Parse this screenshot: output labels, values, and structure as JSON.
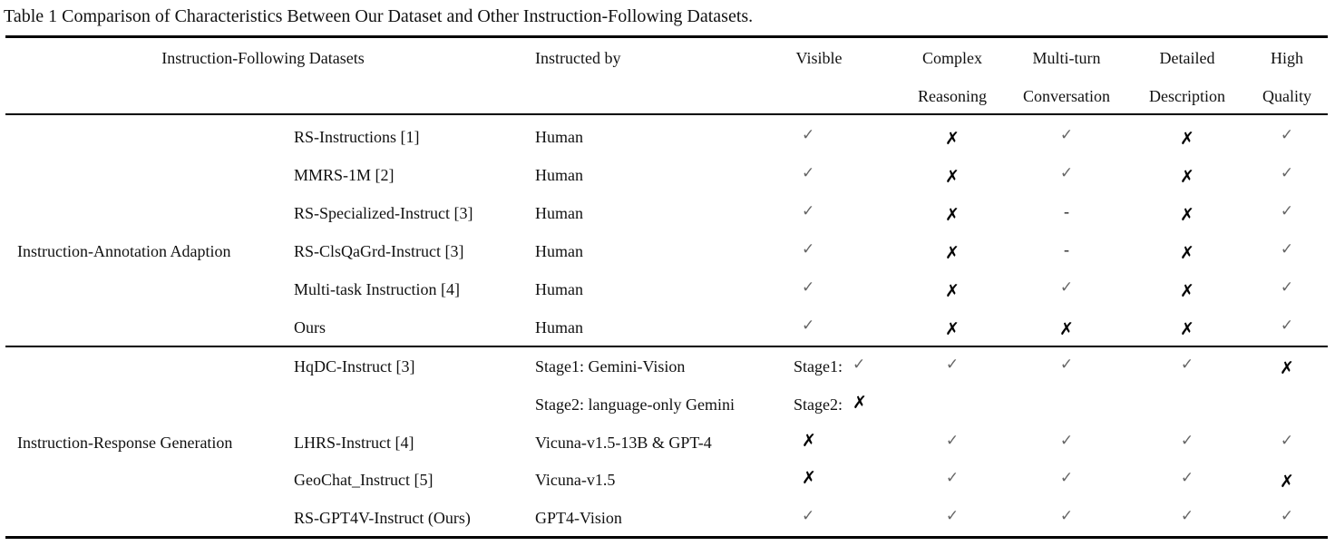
{
  "caption": "Table 1 Comparison of Characteristics Between Our Dataset and Other Instruction-Following Datasets.",
  "symbols": {
    "check": "✓",
    "cross": "✗",
    "dash": "-"
  },
  "headers": {
    "datasets": "Instruction-Following Datasets",
    "instructed_by": "Instructed by",
    "visible": "Visible",
    "complex_1": "Complex",
    "complex_2": "Reasoning",
    "multiturn_1": "Multi-turn",
    "multiturn_2": "Conversation",
    "detailed_1": "Detailed",
    "detailed_2": "Description",
    "quality_1": "High",
    "quality_2": "Quality"
  },
  "groups": [
    {
      "name": "Instruction-Annotation Adaption",
      "rows": [
        {
          "dataset": "RS-Instructions [1]",
          "instructed_by": "Human",
          "visible": "check",
          "complex": "cross",
          "multiturn": "check",
          "detailed": "cross",
          "quality": "check"
        },
        {
          "dataset": "MMRS-1M [2]",
          "instructed_by": "Human",
          "visible": "check",
          "complex": "cross",
          "multiturn": "check",
          "detailed": "cross",
          "quality": "check"
        },
        {
          "dataset": "RS-Specialized-Instruct [3]",
          "instructed_by": "Human",
          "visible": "check",
          "complex": "cross",
          "multiturn": "dash",
          "detailed": "cross",
          "quality": "check"
        },
        {
          "dataset": "RS-ClsQaGrd-Instruct [3]",
          "instructed_by": "Human",
          "visible": "check",
          "complex": "cross",
          "multiturn": "dash",
          "detailed": "cross",
          "quality": "check"
        },
        {
          "dataset": "Multi-task Instruction [4]",
          "instructed_by": "Human",
          "visible": "check",
          "complex": "cross",
          "multiturn": "check",
          "detailed": "cross",
          "quality": "check"
        },
        {
          "dataset": "Ours",
          "instructed_by": "Human",
          "visible": "check",
          "complex": "cross",
          "multiturn": "cross",
          "detailed": "cross",
          "quality": "check"
        }
      ]
    },
    {
      "name": "Instruction-Response Generation",
      "rows": [
        {
          "dataset": "HqDC-Instruct [3]",
          "instructed_by": "Stage1: Gemini-Vision",
          "instructed_by_2": "Stage2: language-only Gemini",
          "visible_label_1": "Stage1:",
          "visible": "check",
          "visible_label_2": "Stage2:",
          "visible_2": "cross",
          "complex": "check",
          "multiturn": "check",
          "detailed": "check",
          "quality": "cross"
        },
        {
          "dataset": "LHRS-Instruct [4]",
          "instructed_by": "Vicuna-v1.5-13B & GPT-4",
          "visible": "cross",
          "complex": "check",
          "multiturn": "check",
          "detailed": "check",
          "quality": "check"
        },
        {
          "dataset": "GeoChat_Instruct [5]",
          "instructed_by": "Vicuna-v1.5",
          "visible": "cross",
          "complex": "check",
          "multiturn": "check",
          "detailed": "check",
          "quality": "cross"
        },
        {
          "dataset": "RS-GPT4V-Instruct (Ours)",
          "instructed_by": "GPT4-Vision",
          "visible": "check",
          "complex": "check",
          "multiturn": "check",
          "detailed": "check",
          "quality": "check"
        }
      ]
    }
  ]
}
